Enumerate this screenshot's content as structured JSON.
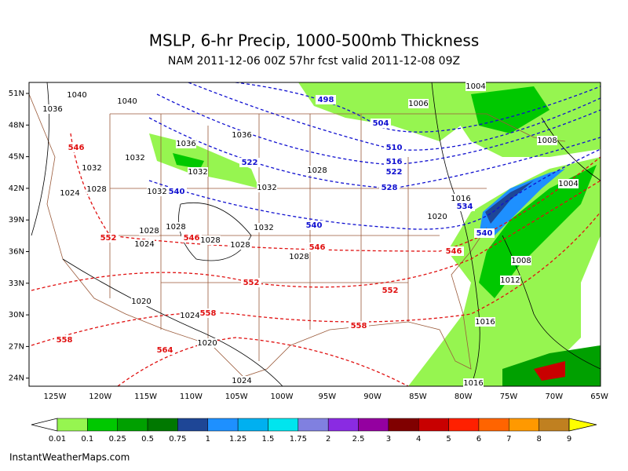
{
  "header": {
    "title": "MSLP, 6-hr Precip, 1000-500mb Thickness",
    "subtitle": "NAM 2011-12-06 00Z 57hr fcst valid 2011-12-08 09Z"
  },
  "axes": {
    "latitude_labels": [
      "51N",
      "48N",
      "45N",
      "42N",
      "39N",
      "36N",
      "33N",
      "30N",
      "27N",
      "24N"
    ],
    "longitude_labels": [
      "125W",
      "120W",
      "115W",
      "110W",
      "105W",
      "100W",
      "95W",
      "90W",
      "85W",
      "80W",
      "75W",
      "70W",
      "65W"
    ]
  },
  "contour_labels": {
    "thickness_cold": [
      "498",
      "504",
      "510",
      "516",
      "522",
      "528",
      "534",
      "540",
      "522",
      "540",
      "540"
    ],
    "thickness_warm": [
      "546",
      "552",
      "546",
      "546",
      "546",
      "552",
      "552",
      "558",
      "558",
      "564",
      "558"
    ],
    "pressure": [
      "1040",
      "1040",
      "1036",
      "1032",
      "1024",
      "1028",
      "1036",
      "1032",
      "1032",
      "1032",
      "1036",
      "1028",
      "1032",
      "1032",
      "1028",
      "1024",
      "1028",
      "1028",
      "1028",
      "1028",
      "1020",
      "1024",
      "1020",
      "1024",
      "1004",
      "1006",
      "1008",
      "1016",
      "1020",
      "1004",
      "1008",
      "1012",
      "1016",
      "1016"
    ]
  },
  "colorbar": {
    "labels": [
      "0.01",
      "0.1",
      "0.25",
      "0.5",
      "0.75",
      "1",
      "1.25",
      "1.5",
      "1.75",
      "2",
      "2.5",
      "3",
      "4",
      "5",
      "6",
      "7",
      "8",
      "9"
    ]
  },
  "footer": {
    "credit": "InstantWeatherMaps.com"
  }
}
